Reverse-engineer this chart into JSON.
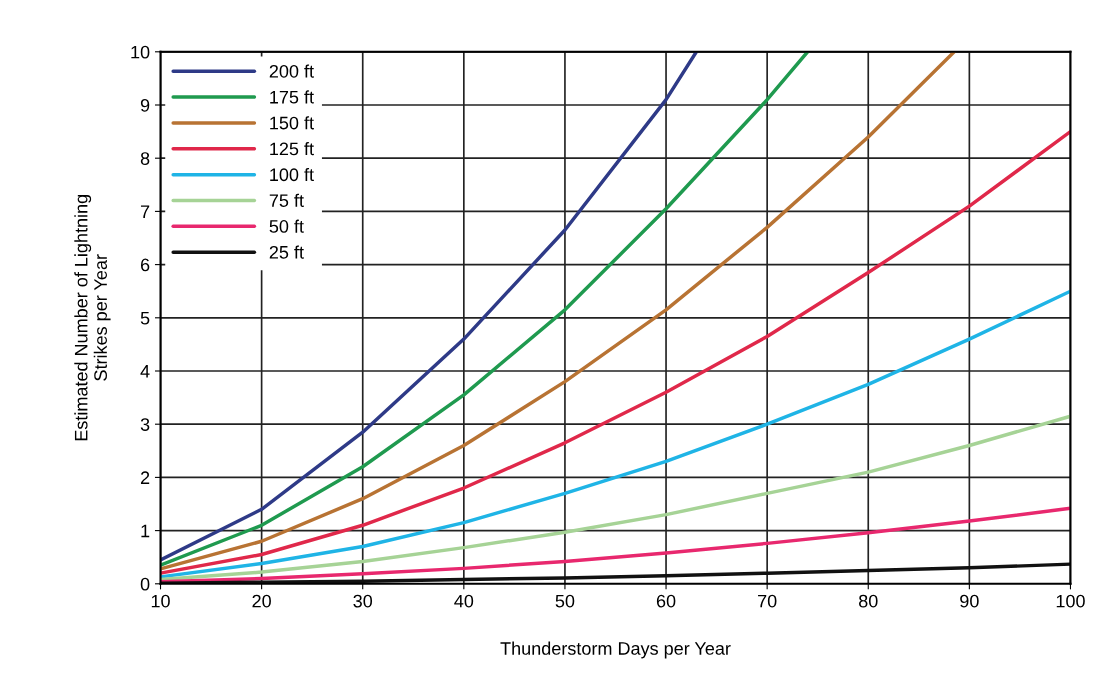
{
  "chart_data": {
    "type": "line",
    "xlabel": "Thunderstorm Days per Year",
    "ylabel": "Estimated Number of Lightning\nStrikes per Year",
    "xlim": [
      10,
      100
    ],
    "ylim": [
      0,
      10
    ],
    "xticks": [
      10,
      20,
      30,
      40,
      50,
      60,
      70,
      80,
      90,
      100
    ],
    "yticks": [
      0,
      1,
      2,
      3,
      4,
      5,
      6,
      7,
      8,
      9,
      10
    ],
    "grid": true,
    "legend": "top left",
    "marker": "none",
    "line_style": "solid",
    "series": [
      {
        "name": "200 ft",
        "color": "#2e3a87",
        "x": [
          10,
          20,
          30,
          40,
          50,
          60,
          63
        ],
        "values": [
          0.45,
          1.4,
          2.85,
          4.6,
          6.65,
          9.1,
          10
        ]
      },
      {
        "name": "175 ft",
        "color": "#1f9a4f",
        "x": [
          10,
          20,
          30,
          40,
          50,
          60,
          70,
          74
        ],
        "values": [
          0.35,
          1.1,
          2.2,
          3.55,
          5.15,
          7.05,
          9.1,
          10
        ]
      },
      {
        "name": "150 ft",
        "color": "#b87333",
        "x": [
          10,
          20,
          30,
          40,
          50,
          60,
          70,
          80,
          88.5
        ],
        "values": [
          0.28,
          0.8,
          1.6,
          2.6,
          3.8,
          5.15,
          6.7,
          8.4,
          10
        ]
      },
      {
        "name": "125 ft",
        "color": "#e0284a",
        "x": [
          10,
          20,
          30,
          40,
          50,
          60,
          70,
          80,
          90,
          100
        ],
        "values": [
          0.2,
          0.55,
          1.1,
          1.8,
          2.65,
          3.6,
          4.65,
          5.85,
          7.1,
          8.5
        ]
      },
      {
        "name": "100 ft",
        "color": "#1fb4e6",
        "x": [
          10,
          20,
          30,
          40,
          50,
          60,
          70,
          80,
          90,
          100
        ],
        "values": [
          0.13,
          0.38,
          0.7,
          1.15,
          1.7,
          2.3,
          3.0,
          3.75,
          4.6,
          5.5
        ]
      },
      {
        "name": "75 ft",
        "color": "#a6d396",
        "x": [
          10,
          20,
          30,
          40,
          50,
          60,
          70,
          80,
          90,
          100
        ],
        "values": [
          0.08,
          0.22,
          0.42,
          0.68,
          0.97,
          1.3,
          1.7,
          2.1,
          2.6,
          3.15
        ]
      },
      {
        "name": "50 ft",
        "color": "#e8286e",
        "x": [
          10,
          20,
          30,
          40,
          50,
          60,
          70,
          80,
          90,
          100
        ],
        "values": [
          0.04,
          0.1,
          0.19,
          0.29,
          0.42,
          0.58,
          0.76,
          0.96,
          1.18,
          1.42
        ]
      },
      {
        "name": "25 ft",
        "color": "#111111",
        "x": [
          10,
          20,
          30,
          40,
          50,
          60,
          70,
          80,
          90,
          100
        ],
        "values": [
          0.01,
          0.03,
          0.05,
          0.08,
          0.11,
          0.15,
          0.2,
          0.25,
          0.3,
          0.37
        ]
      }
    ]
  }
}
